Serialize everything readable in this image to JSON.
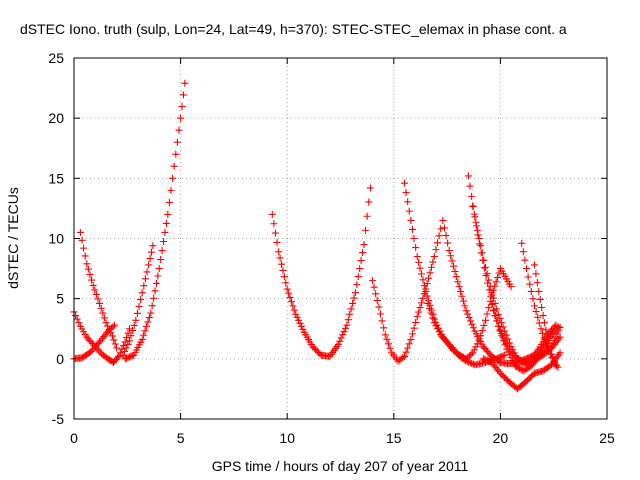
{
  "chart_data": {
    "type": "scatter",
    "title": "dSTEC Iono. truth (sulp, Lon=24, Lat=49, h=370): STEC-STEC_elemax in phase cont. a",
    "xlabel": "GPS time / hours of day 207 of year 2011",
    "ylabel": "dSTEC  / TECUs",
    "xlim": [
      0,
      25
    ],
    "ylim": [
      -5,
      25
    ],
    "xticks": [
      0,
      5,
      10,
      15,
      20,
      25
    ],
    "yticks": [
      -5,
      0,
      5,
      10,
      15,
      20,
      25
    ],
    "grid": true,
    "marker": "+",
    "color": "#ff0000",
    "series": [
      {
        "x": [
          0.0,
          0.3,
          0.6,
          1.0,
          1.3,
          1.6,
          1.85,
          2.1,
          2.4,
          2.6
        ],
        "y": [
          3.9,
          2.7,
          1.8,
          1.0,
          0.4,
          0.0,
          -0.3,
          0.2,
          1.4,
          2.5
        ]
      },
      {
        "x": [
          0.3,
          0.6,
          0.9,
          1.2,
          1.5,
          1.8,
          2.0,
          2.1
        ],
        "y": [
          10.5,
          7.9,
          6.1,
          4.6,
          3.0,
          1.9,
          0.9,
          0.2
        ]
      },
      {
        "x": [
          0.0,
          0.4,
          0.8,
          1.2,
          1.6,
          1.9
        ],
        "y": [
          0.0,
          0.1,
          0.6,
          1.4,
          2.3,
          2.8
        ]
      },
      {
        "x": [
          2.3,
          2.6,
          2.9,
          3.2,
          3.5,
          3.7
        ],
        "y": [
          0.3,
          1.5,
          3.2,
          5.5,
          7.8,
          9.4
        ]
      },
      {
        "x": [
          2.4,
          2.8,
          3.2,
          3.6,
          4.0,
          4.4,
          4.7,
          5.0,
          5.2
        ],
        "y": [
          0.0,
          0.3,
          1.6,
          3.8,
          7.5,
          12.0,
          16.0,
          20.0,
          22.9
        ]
      },
      {
        "x": [
          9.3,
          9.6,
          10.0,
          10.4,
          10.8,
          11.2,
          11.6,
          12.0,
          12.4,
          12.8,
          13.2,
          13.6,
          13.9
        ],
        "y": [
          12.0,
          8.9,
          5.8,
          3.7,
          2.2,
          1.0,
          0.3,
          0.2,
          1.2,
          2.8,
          5.5,
          9.5,
          14.2
        ]
      },
      {
        "x": [
          14.0,
          14.3,
          14.6,
          14.9,
          15.2,
          15.5,
          15.8,
          16.1,
          16.5,
          16.9,
          17.2
        ],
        "y": [
          6.5,
          4.3,
          2.0,
          0.5,
          -0.2,
          0.2,
          1.6,
          3.5,
          5.8,
          8.5,
          10.8
        ]
      },
      {
        "x": [
          15.5,
          15.8,
          16.1,
          16.5,
          16.9,
          17.3,
          17.8,
          18.3,
          18.8,
          19.3,
          19.8,
          20.2
        ],
        "y": [
          14.6,
          11.5,
          8.5,
          5.6,
          3.3,
          1.8,
          0.7,
          -0.1,
          -0.5,
          -0.3,
          0.0,
          0.3
        ]
      },
      {
        "x": [
          16.6,
          16.9,
          17.2,
          17.6,
          18.0,
          18.4,
          18.7,
          19.0,
          19.3,
          19.6,
          20.0,
          20.5
        ],
        "y": [
          4.6,
          3.0,
          2.0,
          1.2,
          0.4,
          0.0,
          0.5,
          1.5,
          3.2,
          5.3,
          7.5,
          6.0
        ]
      },
      {
        "x": [
          17.3,
          17.6,
          18.0,
          18.4,
          18.8,
          19.2,
          19.6,
          20.0,
          20.4,
          20.8,
          21.2,
          21.6,
          22.0,
          22.4,
          22.8
        ],
        "y": [
          11.5,
          9.0,
          6.4,
          4.0,
          2.3,
          1.0,
          0.2,
          -0.3,
          -0.4,
          -0.3,
          0.0,
          0.3,
          0.4,
          1.0,
          2.6
        ]
      },
      {
        "x": [
          18.5,
          18.8,
          19.1,
          19.4,
          19.7,
          20.0,
          20.3,
          20.7,
          21.1,
          21.5,
          21.9,
          22.3,
          22.7
        ],
        "y": [
          15.2,
          11.8,
          8.8,
          6.3,
          4.0,
          2.3,
          0.8,
          -0.6,
          -1.0,
          -0.5,
          0.5,
          1.7,
          2.7
        ]
      },
      {
        "x": [
          18.7,
          19.0,
          19.3,
          19.6,
          19.9,
          20.2,
          20.5,
          20.8,
          21.1,
          21.4,
          21.8,
          22.2,
          22.6
        ],
        "y": [
          12.7,
          10.0,
          7.6,
          5.5,
          3.7,
          2.3,
          1.0,
          0.0,
          -0.4,
          -0.1,
          0.8,
          2.0,
          2.8
        ]
      },
      {
        "x": [
          19.2,
          19.6,
          20.0,
          20.4,
          20.8,
          21.2,
          21.6,
          22.0,
          22.4,
          22.8
        ],
        "y": [
          0.0,
          -0.3,
          -1.2,
          -1.9,
          -2.5,
          -1.9,
          -1.2,
          -1.0,
          -0.5,
          0.5
        ]
      },
      {
        "x": [
          21.0,
          21.3,
          21.6,
          21.9,
          22.2,
          22.5,
          22.7
        ],
        "y": [
          9.6,
          6.8,
          4.4,
          2.5,
          1.0,
          -0.2,
          -0.7
        ]
      },
      {
        "x": [
          21.6,
          21.8,
          22.0,
          22.2,
          22.4,
          22.6
        ],
        "y": [
          7.8,
          5.6,
          3.6,
          1.8,
          0.4,
          -0.6
        ]
      },
      {
        "x": [
          19.6,
          19.9,
          20.2,
          20.5,
          20.8,
          21.2,
          21.6,
          22.0,
          22.4,
          22.8
        ],
        "y": [
          4.5,
          2.7,
          1.5,
          0.6,
          0.0,
          -0.3,
          -0.1,
          0.3,
          0.9,
          1.8
        ]
      }
    ]
  }
}
